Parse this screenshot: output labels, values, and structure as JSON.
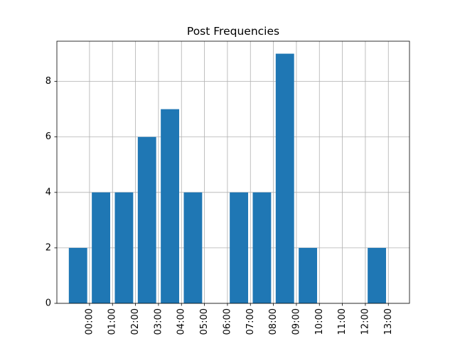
{
  "chart_data": {
    "type": "bar",
    "title": "Post Frequencies",
    "xlabel": "",
    "ylabel": "",
    "categories": [
      "00:00",
      "01:00",
      "02:00",
      "03:00",
      "04:00",
      "05:00",
      "06:00",
      "07:00",
      "08:00",
      "09:00",
      "10:00",
      "11:00",
      "12:00",
      "13:00"
    ],
    "bars": [
      {
        "x": -0.5,
        "value": 2
      },
      {
        "x": 0.5,
        "value": 4
      },
      {
        "x": 1.5,
        "value": 4
      },
      {
        "x": 2.5,
        "value": 6
      },
      {
        "x": 3.5,
        "value": 7
      },
      {
        "x": 4.5,
        "value": 4
      },
      {
        "x": 6.5,
        "value": 4
      },
      {
        "x": 7.5,
        "value": 4
      },
      {
        "x": 8.5,
        "value": 9
      },
      {
        "x": 9.5,
        "value": 2
      },
      {
        "x": 12.5,
        "value": 2
      }
    ],
    "bar_width": 0.8,
    "xlim": [
      -1.42,
      13.92
    ],
    "ylim": [
      0,
      9.45
    ],
    "yticks": [
      0,
      2,
      4,
      6,
      8
    ],
    "grid": true,
    "bar_color": "#1f77b4"
  }
}
